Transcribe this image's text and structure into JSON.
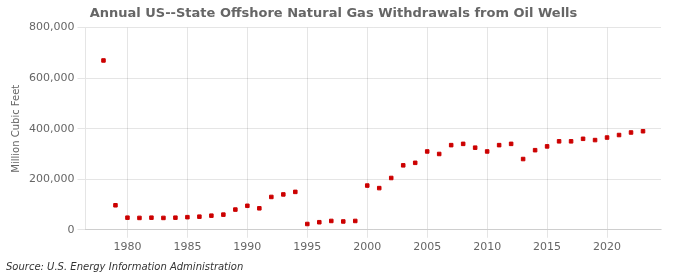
{
  "chart_data": {
    "type": "scatter",
    "title": "Annual US--State Offshore Natural Gas Withdrawals from Oil Wells",
    "ylabel": "Million Cubic Feet",
    "annotations": [
      "Source: U.S. Energy Information Administration"
    ],
    "color": "#cc0000",
    "marker": "square",
    "grid": true,
    "x": [
      1978,
      1979,
      1980,
      1981,
      1982,
      1983,
      1984,
      1985,
      1986,
      1987,
      1988,
      1989,
      1990,
      1991,
      1992,
      1993,
      1994,
      1995,
      1996,
      1997,
      1998,
      1999,
      2000,
      2001,
      2002,
      2003,
      2004,
      2005,
      2006,
      2007,
      2008,
      2009,
      2010,
      2011,
      2012,
      2013,
      2014,
      2015,
      2016,
      2017,
      2018,
      2019,
      2020,
      2021,
      2022,
      2023
    ],
    "values": [
      670000,
      97000,
      48000,
      47000,
      48000,
      47000,
      48000,
      50000,
      52000,
      56000,
      60000,
      80000,
      95000,
      85000,
      130000,
      140000,
      150000,
      23000,
      30000,
      35000,
      33000,
      35000,
      175000,
      165000,
      205000,
      255000,
      265000,
      310000,
      300000,
      335000,
      340000,
      325000,
      310000,
      335000,
      340000,
      280000,
      315000,
      330000,
      350000,
      350000,
      360000,
      355000,
      365000,
      375000,
      385000,
      390000
    ],
    "xlim": [
      1976.5,
      2024.5
    ],
    "xticks": [
      1980,
      1985,
      1990,
      1995,
      2000,
      2005,
      2010,
      2015,
      2020
    ],
    "ylim": [
      0,
      800000
    ],
    "yticks": [
      0,
      {
        "value": 200000,
        "label": "200,000"
      },
      {
        "value": 400000,
        "label": "400,000"
      },
      {
        "value": 600000,
        "label": "600,000"
      },
      {
        "value": 800000,
        "label": "800,000"
      }
    ]
  }
}
